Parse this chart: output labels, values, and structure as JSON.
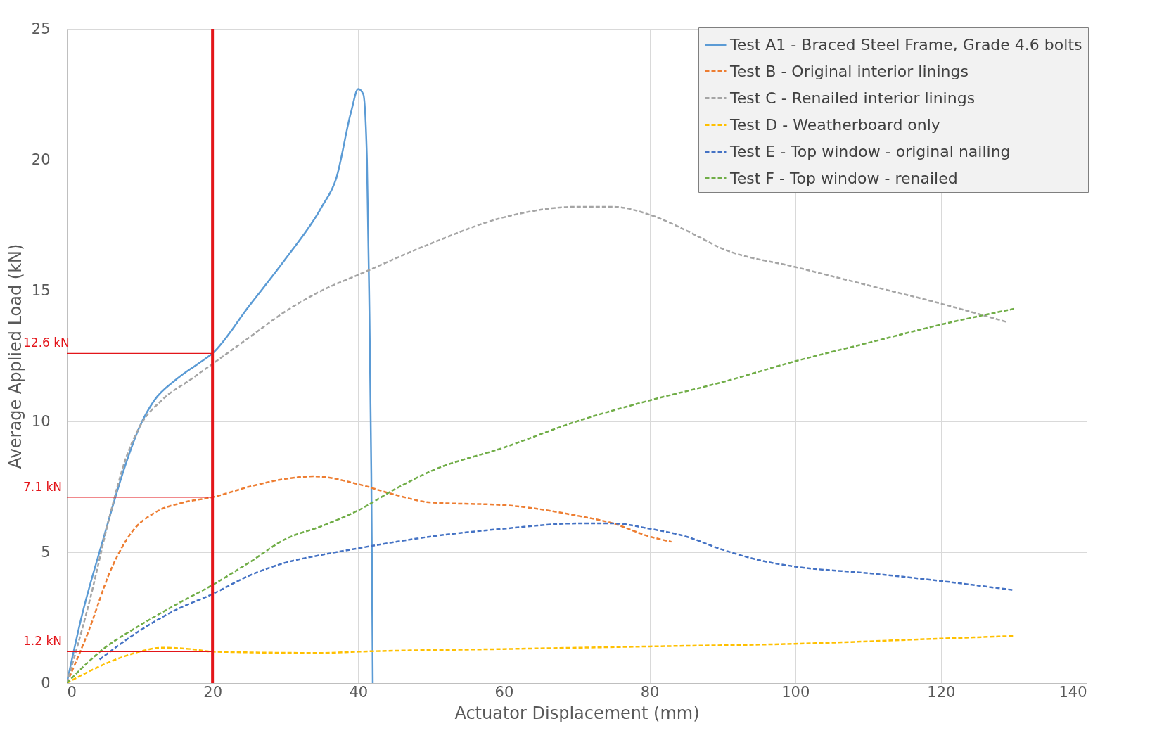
{
  "chart_data": {
    "type": "line",
    "xlabel": "Actuator Displacement (mm)",
    "ylabel": "Average Applied Load (kN)",
    "xlim": [
      0,
      140
    ],
    "xticks": [
      0,
      20,
      40,
      60,
      80,
      100,
      120,
      140
    ],
    "ylim": [
      0,
      25
    ],
    "yticks": [
      0,
      5,
      10,
      15,
      20,
      25
    ],
    "grid": true,
    "legend": "top right",
    "series": [
      {
        "name": "Test A1 - Braced Steel Frame, Grade 4.6 bolts",
        "color": "#5b9bd5",
        "line_style": "solid",
        "x": [
          0,
          2,
          5,
          8,
          10,
          12,
          15,
          18,
          20,
          25,
          30,
          35,
          37,
          39,
          40,
          40.7,
          41.2,
          41.5,
          41.8,
          42
        ],
        "values": [
          0,
          2.5,
          5.5,
          8.3,
          9.8,
          10.8,
          11.6,
          12.2,
          12.6,
          14.4,
          16.2,
          18.2,
          19.3,
          21.8,
          22.7,
          22.5,
          20,
          15,
          8,
          0
        ]
      },
      {
        "name": "Test B - Original interior linings",
        "color": "#ed7d31",
        "line_style": "dashed",
        "x": [
          0,
          3,
          6,
          9,
          12,
          16,
          20,
          25,
          30,
          34,
          40,
          45,
          50,
          60,
          70,
          75,
          80,
          83
        ],
        "values": [
          0,
          2,
          4.3,
          5.8,
          6.5,
          6.9,
          7.1,
          7.5,
          7.8,
          7.9,
          7.6,
          7.2,
          6.9,
          6.8,
          6.4,
          6.1,
          5.6,
          5.4
        ]
      },
      {
        "name": "Test C - Renailed interior linings",
        "color": "#a5a5a5",
        "line_style": "dashed",
        "x": [
          0,
          3,
          6,
          8,
          10,
          13,
          17,
          20,
          25,
          30,
          35,
          40,
          50,
          60,
          70,
          75,
          80,
          85,
          90,
          100,
          110,
          120,
          129
        ],
        "values": [
          0,
          3,
          6.5,
          8.5,
          9.8,
          10.8,
          11.6,
          12.2,
          13.2,
          14.2,
          15,
          15.6,
          16.8,
          17.8,
          18.2,
          18.2,
          17.9,
          17.3,
          16.6,
          15.9,
          15.2,
          14.5,
          13.8
        ]
      },
      {
        "name": "Test D - Weatherboard only",
        "color": "#ffc000",
        "line_style": "dashed",
        "x": [
          0,
          5,
          10,
          13,
          17,
          20,
          35,
          40,
          60,
          80,
          100,
          120,
          130
        ],
        "values": [
          0,
          0.7,
          1.2,
          1.35,
          1.3,
          1.2,
          1.15,
          1.2,
          1.3,
          1.4,
          1.5,
          1.7,
          1.8
        ]
      },
      {
        "name": "Test E - Top window - original nailing",
        "color": "#4472c4",
        "line_style": "dashed",
        "x": [
          4.5,
          10,
          15,
          20,
          25,
          30,
          35,
          40,
          50,
          60,
          70,
          75,
          80,
          85,
          90,
          95,
          100,
          110,
          120,
          130
        ],
        "values": [
          0.9,
          2,
          2.8,
          3.4,
          4.1,
          4.6,
          4.9,
          5.15,
          5.6,
          5.9,
          6.1,
          6.1,
          5.9,
          5.6,
          5.1,
          4.7,
          4.45,
          4.2,
          3.9,
          3.55
        ]
      },
      {
        "name": "Test F - Top window - renailed",
        "color": "#70ad47",
        "line_style": "dashed",
        "x": [
          0,
          5,
          10,
          15,
          20,
          25,
          30,
          35,
          40,
          45,
          50,
          60,
          70,
          80,
          90,
          100,
          110,
          120,
          130
        ],
        "values": [
          0,
          1.3,
          2.2,
          3,
          3.75,
          4.6,
          5.5,
          6,
          6.6,
          7.4,
          8.1,
          9.0,
          10,
          10.8,
          11.5,
          12.3,
          13,
          13.7,
          14.3
        ]
      }
    ],
    "ref_lines": [
      {
        "axis": "x",
        "value": 20,
        "color": "#e3151a"
      },
      {
        "axis": "y",
        "value": 12.6,
        "label": "12.6 kN",
        "color": "#e3151a"
      },
      {
        "axis": "y",
        "value": 7.1,
        "label": "7.1 kN",
        "color": "#e3151a"
      },
      {
        "axis": "y",
        "value": 1.2,
        "label": "1.2 kN",
        "color": "#e3151a"
      }
    ]
  }
}
